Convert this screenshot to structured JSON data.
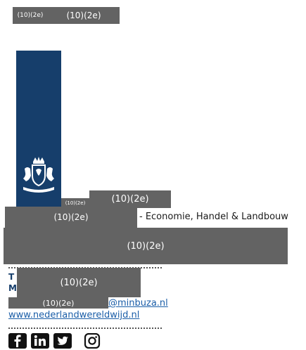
{
  "redaction_label": "(10)(2e)",
  "header": {
    "redacted_1": "(10)(2e)",
    "redacted_2": "(10)(2e)"
  },
  "signature": {
    "name_redacted_small": "(10)(2e)",
    "name_redacted": "(10)(2e)",
    "department_redacted": "(10)(2e)",
    "department_suffix": "- Economie, Handel & Landbouw",
    "address_redacted": "(10)(2e)",
    "phone_label": "T",
    "mobile_label": "M",
    "contact_redacted": "(10)(2e)",
    "email_redacted": "(10)(2e)",
    "email_domain": "@minbuza.nl",
    "website": "www.nederlandwereldwijd.nl"
  },
  "social_icons": [
    "facebook-icon",
    "linkedin-icon",
    "twitter-icon",
    "instagram-icon"
  ],
  "colors": {
    "logo_blue": "#163e6b",
    "redaction_gray": "#636363",
    "link_blue": "#1b5ea8"
  }
}
